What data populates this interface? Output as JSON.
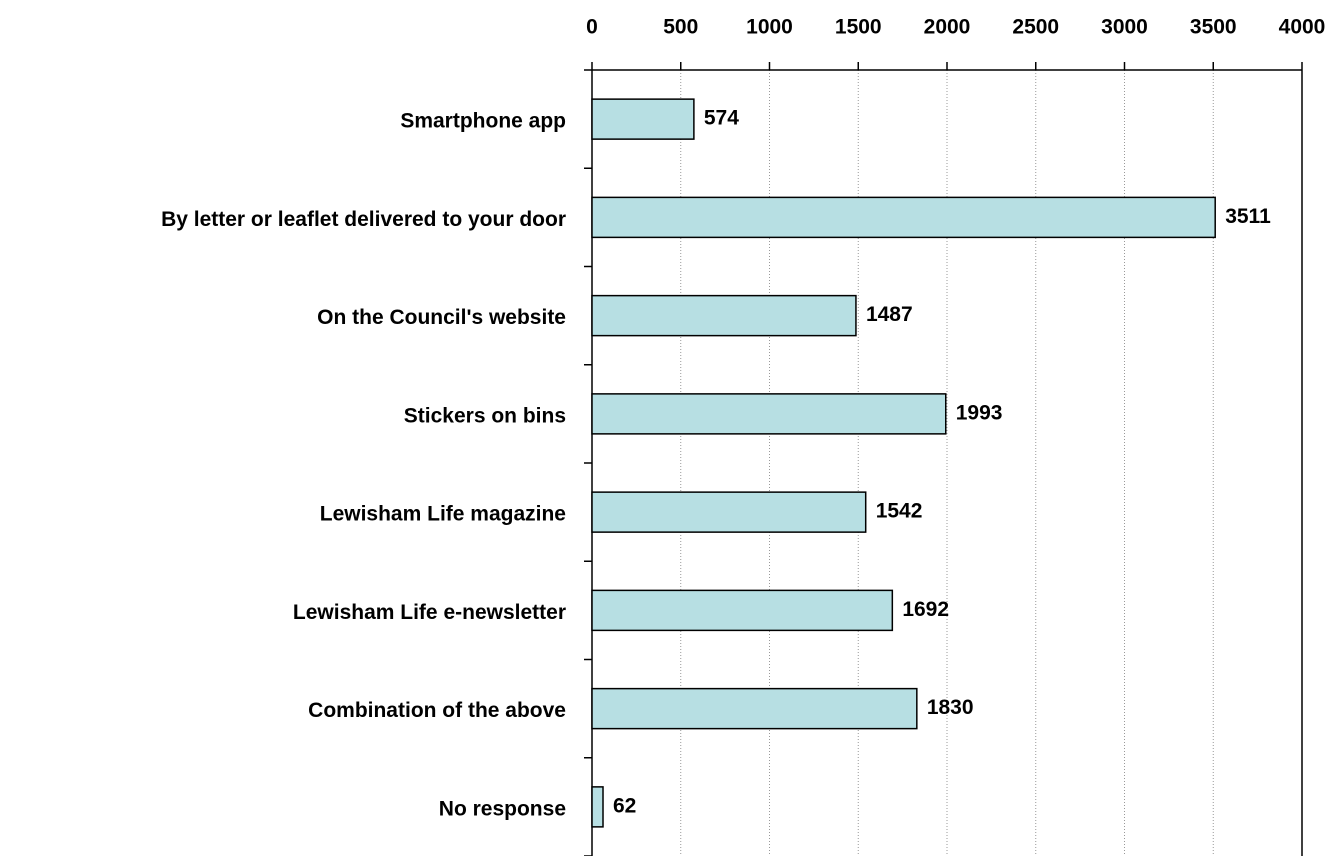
{
  "chart_data": {
    "type": "bar",
    "categories": [
      "Smartphone app",
      "By letter or leaflet delivered to your door",
      "On the Council's website",
      "Stickers on bins",
      "Lewisham Life magazine",
      "Lewisham Life e-newsletter",
      "Combination of the above",
      "No response"
    ],
    "values": [
      574,
      3511,
      1487,
      1993,
      1542,
      1692,
      1830,
      62
    ],
    "color": "#b7dfe3",
    "xlim": [
      0,
      4000
    ],
    "xticks": [
      0,
      500,
      1000,
      1500,
      2000,
      2500,
      3000,
      3500,
      4000
    ],
    "grid": true
  }
}
